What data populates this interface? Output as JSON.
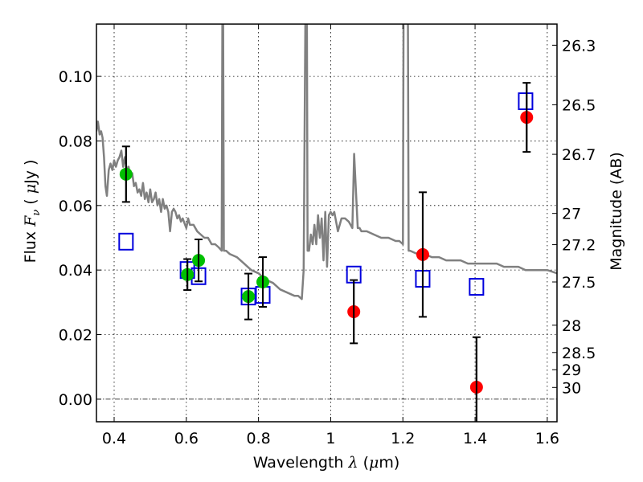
{
  "chart_data": {
    "type": "scatter",
    "title": "",
    "xlabel": "Wavelength  λ (μm)",
    "ylabel": "Flux  F_ν  ( μJy )",
    "ylabel_parts": {
      "prefix": "Flux ",
      "symbol": "F",
      "subscript": "ν",
      "suffix_open": " ( ",
      "mu": "μ",
      "unit": "Jy )"
    },
    "xlabel_parts": {
      "prefix": "Wavelength  ",
      "symbol": "λ",
      "mid": " (",
      "mu": "μ",
      "unit": "m)"
    },
    "y2label": "Magnitude (AB)",
    "xlim": [
      0.351,
      1.627
    ],
    "ylim": [
      -0.007,
      0.1162
    ],
    "grid": true,
    "x_ticks": [
      {
        "value": 0.4,
        "label": "0.4"
      },
      {
        "value": 0.6,
        "label": "0.6"
      },
      {
        "value": 0.8,
        "label": "0.8"
      },
      {
        "value": 1.0,
        "label": "1"
      },
      {
        "value": 1.2,
        "label": "1.2"
      },
      {
        "value": 1.4,
        "label": "1.4"
      },
      {
        "value": 1.6,
        "label": "1.6"
      }
    ],
    "y_ticks": [
      {
        "value": 0.0,
        "label": "0.00"
      },
      {
        "value": 0.02,
        "label": "0.02"
      },
      {
        "value": 0.04,
        "label": "0.04"
      },
      {
        "value": 0.06,
        "label": "0.06"
      },
      {
        "value": 0.08,
        "label": "0.08"
      },
      {
        "value": 0.1,
        "label": "0.10"
      }
    ],
    "y2_ticks": [
      {
        "mag": 26.3,
        "label": "26.3"
      },
      {
        "mag": 26.5,
        "label": "26.5"
      },
      {
        "mag": 26.7,
        "label": "26.7"
      },
      {
        "mag": 27.0,
        "label": "27"
      },
      {
        "mag": 27.2,
        "label": "27.2"
      },
      {
        "mag": 27.5,
        "label": "27.5"
      },
      {
        "mag": 28.0,
        "label": "28"
      },
      {
        "mag": 28.5,
        "label": "28.5"
      },
      {
        "mag": 29.0,
        "label": "29"
      },
      {
        "mag": 30.0,
        "label": "30"
      }
    ],
    "zero_line": 0.0,
    "series": [
      {
        "name": "model-spectrum",
        "kind": "line",
        "color": "#808080",
        "x": [
          0.351,
          0.355,
          0.36,
          0.364,
          0.368,
          0.372,
          0.376,
          0.38,
          0.385,
          0.39,
          0.395,
          0.4,
          0.405,
          0.41,
          0.415,
          0.42,
          0.425,
          0.43,
          0.435,
          0.44,
          0.445,
          0.45,
          0.455,
          0.46,
          0.465,
          0.47,
          0.475,
          0.48,
          0.485,
          0.49,
          0.495,
          0.5,
          0.505,
          0.51,
          0.515,
          0.52,
          0.525,
          0.53,
          0.535,
          0.54,
          0.545,
          0.55,
          0.555,
          0.56,
          0.565,
          0.57,
          0.575,
          0.58,
          0.585,
          0.59,
          0.6,
          0.605,
          0.61,
          0.62,
          0.63,
          0.64,
          0.65,
          0.66,
          0.67,
          0.68,
          0.69,
          0.698,
          0.7,
          0.702,
          0.704,
          0.71,
          0.72,
          0.74,
          0.76,
          0.78,
          0.8,
          0.82,
          0.84,
          0.86,
          0.88,
          0.9,
          0.91,
          0.92,
          0.925,
          0.93,
          0.932,
          0.934,
          0.936,
          0.94,
          0.945,
          0.95,
          0.955,
          0.96,
          0.965,
          0.97,
          0.975,
          0.98,
          0.985,
          0.99,
          0.995,
          1.0,
          1.005,
          1.01,
          1.02,
          1.03,
          1.04,
          1.05,
          1.06,
          1.065,
          1.075,
          1.08,
          1.085,
          1.09,
          1.1,
          1.12,
          1.14,
          1.16,
          1.18,
          1.19,
          1.2,
          1.202,
          1.206,
          1.21,
          1.214,
          1.216,
          1.22,
          1.24,
          1.26,
          1.28,
          1.3,
          1.32,
          1.34,
          1.36,
          1.38,
          1.4,
          1.42,
          1.44,
          1.46,
          1.48,
          1.5,
          1.52,
          1.54,
          1.56,
          1.58,
          1.6,
          1.627
        ],
        "y": [
          0.083,
          0.086,
          0.082,
          0.083,
          0.081,
          0.075,
          0.066,
          0.063,
          0.071,
          0.073,
          0.071,
          0.074,
          0.072,
          0.074,
          0.075,
          0.077,
          0.072,
          0.075,
          0.071,
          0.072,
          0.069,
          0.07,
          0.066,
          0.067,
          0.064,
          0.065,
          0.063,
          0.067,
          0.062,
          0.064,
          0.061,
          0.065,
          0.061,
          0.062,
          0.064,
          0.06,
          0.062,
          0.058,
          0.062,
          0.059,
          0.06,
          0.058,
          0.052,
          0.058,
          0.059,
          0.058,
          0.056,
          0.057,
          0.055,
          0.056,
          0.053,
          0.056,
          0.054,
          0.054,
          0.052,
          0.051,
          0.05,
          0.05,
          0.048,
          0.048,
          0.047,
          0.046,
          0.12,
          0.12,
          0.046,
          0.046,
          0.045,
          0.044,
          0.042,
          0.04,
          0.039,
          0.037,
          0.036,
          0.034,
          0.033,
          0.032,
          0.032,
          0.031,
          0.04,
          0.12,
          0.12,
          0.12,
          0.046,
          0.046,
          0.051,
          0.048,
          0.054,
          0.048,
          0.057,
          0.05,
          0.056,
          0.043,
          0.058,
          0.041,
          0.057,
          0.058,
          0.057,
          0.058,
          0.052,
          0.056,
          0.056,
          0.055,
          0.053,
          0.076,
          0.053,
          0.053,
          0.052,
          0.052,
          0.052,
          0.051,
          0.05,
          0.05,
          0.049,
          0.049,
          0.048,
          0.12,
          0.12,
          0.12,
          0.12,
          0.046,
          0.046,
          0.045,
          0.045,
          0.044,
          0.044,
          0.043,
          0.043,
          0.043,
          0.042,
          0.042,
          0.042,
          0.042,
          0.042,
          0.041,
          0.041,
          0.041,
          0.04,
          0.04,
          0.04,
          0.04,
          0.039
        ]
      },
      {
        "name": "photometry-green",
        "kind": "points-errorbar",
        "color": "#00c000",
        "marker": "circle",
        "x": [
          0.433,
          0.603,
          0.634,
          0.772,
          0.812
        ],
        "y": [
          0.0697,
          0.0386,
          0.043,
          0.0318,
          0.0363
        ],
        "yerr": [
          0.0086,
          0.0048,
          0.0065,
          0.0071,
          0.0077
        ]
      },
      {
        "name": "photometry-red",
        "kind": "points-errorbar",
        "color": "#ff0000",
        "marker": "circle",
        "x": [
          1.064,
          1.255,
          1.404,
          1.543
        ],
        "y": [
          0.0271,
          0.0448,
          0.0037,
          0.0873
        ],
        "yerr": [
          0.0098,
          0.0193,
          0.0155,
          0.0107
        ]
      },
      {
        "name": "model-photometry",
        "kind": "points",
        "color": "#0000dd",
        "marker": "open-square",
        "x": [
          0.433,
          0.603,
          0.634,
          0.772,
          0.812,
          1.064,
          1.255,
          1.404,
          1.54
        ],
        "y": [
          0.0488,
          0.04,
          0.0381,
          0.0318,
          0.0323,
          0.0386,
          0.0373,
          0.0348,
          0.0923
        ]
      }
    ]
  }
}
